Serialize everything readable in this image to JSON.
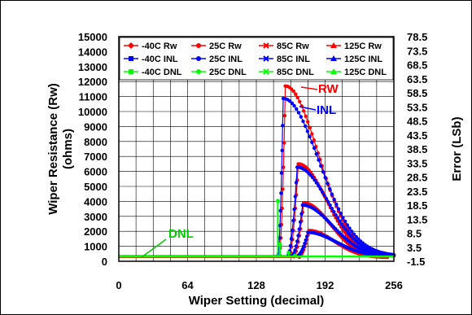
{
  "chart_data": {
    "type": "line",
    "xlabel": "Wiper Setting (decimal)",
    "ylabel_left": "Wiper Resistance (Rw)",
    "ylabel_left_unit": "(ohms)",
    "ylabel_right": "Error (LSb)",
    "xlim": [
      0,
      256
    ],
    "ylim_left": [
      0,
      15000
    ],
    "ylim_right": [
      -1.5,
      78.5
    ],
    "x_ticks": [
      "0",
      "64",
      "128",
      "192",
      "256"
    ],
    "y_left_ticks": [
      "0",
      "1000",
      "2000",
      "3000",
      "4000",
      "5000",
      "6000",
      "7000",
      "8000",
      "9000",
      "10000",
      "11000",
      "12000",
      "13000",
      "14000",
      "15000"
    ],
    "y_right_ticks": [
      "-1.5",
      "3.5",
      "8.5",
      "13.5",
      "18.5",
      "23.5",
      "28.5",
      "33.5",
      "38.5",
      "43.5",
      "48.5",
      "53.5",
      "58.5",
      "63.5",
      "68.5",
      "73.5",
      "78.5"
    ],
    "grid": true,
    "legend_position": "top",
    "legend": [
      {
        "label": "-40C Rw",
        "color": "#ff0000",
        "marker": "diamond"
      },
      {
        "label": "25C Rw",
        "color": "#ff0000",
        "marker": "circle"
      },
      {
        "label": "85C Rw",
        "color": "#ff0000",
        "marker": "x"
      },
      {
        "label": "125C Rw",
        "color": "#ff0000",
        "marker": "triangle"
      },
      {
        "label": "-40C INL",
        "color": "#0000ff",
        "marker": "square"
      },
      {
        "label": "25C INL",
        "color": "#0000ff",
        "marker": "circle"
      },
      {
        "label": "85C INL",
        "color": "#0000ff",
        "marker": "x"
      },
      {
        "label": "125C INL",
        "color": "#0000ff",
        "marker": "triangle"
      },
      {
        "label": "-40C DNL",
        "color": "#00ff00",
        "marker": "square"
      },
      {
        "label": "25C DNL",
        "color": "#00ff00",
        "marker": "circle"
      },
      {
        "label": "85C DNL",
        "color": "#00ff00",
        "marker": "x"
      },
      {
        "label": "125C DNL",
        "color": "#00ff00",
        "marker": "triangle"
      }
    ],
    "annotations": [
      {
        "text": "RW",
        "color": "#ff0000"
      },
      {
        "text": "INL",
        "color": "#0000ff"
      },
      {
        "text": "DNL",
        "color": "#00cc00"
      }
    ],
    "series": [
      {
        "color": "#ff0000",
        "axis": "left",
        "peak_x": 155,
        "peak_y": 11700,
        "rise_start": 149,
        "decay_end": 250
      },
      {
        "color": "#ff0000",
        "axis": "left",
        "peak_x": 167,
        "peak_y": 6500,
        "rise_start": 158,
        "decay_end": 250
      },
      {
        "color": "#ff0000",
        "axis": "left",
        "peak_x": 172,
        "peak_y": 3900,
        "rise_start": 162,
        "decay_end": 250
      },
      {
        "color": "#ff0000",
        "axis": "left",
        "peak_x": 177,
        "peak_y": 2050,
        "rise_start": 167,
        "decay_end": 250
      },
      {
        "color": "#0000ff",
        "axis": "right",
        "peak_x": 153,
        "peak_y": 56.5,
        "rise_start": 148,
        "decay_end": 256
      },
      {
        "color": "#0000ff",
        "axis": "right",
        "peak_x": 166,
        "peak_y": 32.0,
        "rise_start": 157,
        "decay_end": 256
      },
      {
        "color": "#0000ff",
        "axis": "right",
        "peak_x": 171,
        "peak_y": 18.5,
        "rise_start": 161,
        "decay_end": 256
      },
      {
        "color": "#0000ff",
        "axis": "right",
        "peak_x": 176,
        "peak_y": 8.8,
        "rise_start": 166,
        "decay_end": 256
      }
    ],
    "dnl_spikes": [
      {
        "x": 148,
        "y": 20.0
      },
      {
        "x": 150,
        "y": 4.5
      },
      {
        "x": 158,
        "y": 1.5
      },
      {
        "x": 164,
        "y": 0.5
      }
    ]
  }
}
